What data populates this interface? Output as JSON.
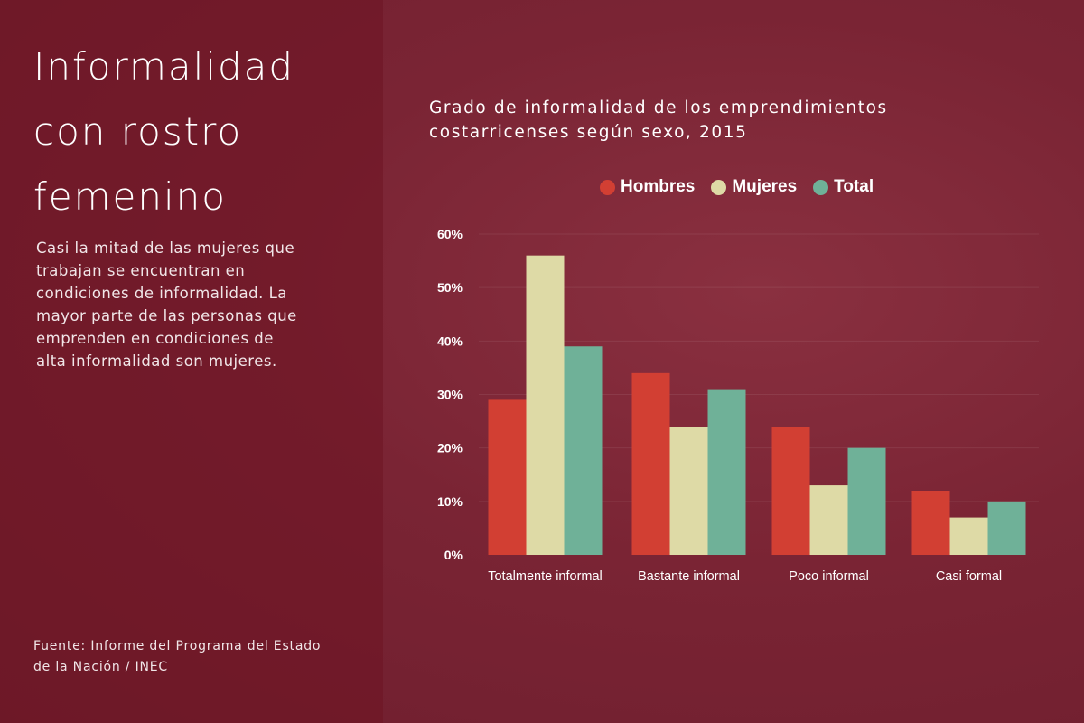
{
  "left_panel": {
    "title": "Informalidad con rostro femenino",
    "description": "Casi la mitad de las mujeres que trabajan se encuentran en condiciones de informalidad. La mayor parte de las personas que emprenden en condiciones de alta informalidad son mujeres.",
    "source": "Fuente: Informe del Programa del Estado de la Nación  / INEC"
  },
  "chart_data": {
    "type": "bar",
    "title": "Grado de informalidad de los emprendimientos costarricenses según sexo, 2015",
    "categories": [
      "Totalmente informal",
      "Bastante informal",
      "Poco informal",
      "Casi formal"
    ],
    "series": [
      {
        "name": "Hombres",
        "color": "#d23f33",
        "values": [
          29,
          34,
          24,
          12
        ]
      },
      {
        "name": "Mujeres",
        "color": "#dedaa6",
        "values": [
          56,
          24,
          13,
          7
        ]
      },
      {
        "name": "Total",
        "color": "#6fb198",
        "values": [
          39,
          31,
          20,
          10
        ]
      }
    ],
    "ylim": [
      0,
      60
    ],
    "yticks": [
      "0%",
      "10%",
      "20%",
      "30%",
      "40%",
      "50%",
      "60%"
    ],
    "xlabel": "",
    "ylabel": "",
    "grid": true,
    "legend": "top"
  }
}
